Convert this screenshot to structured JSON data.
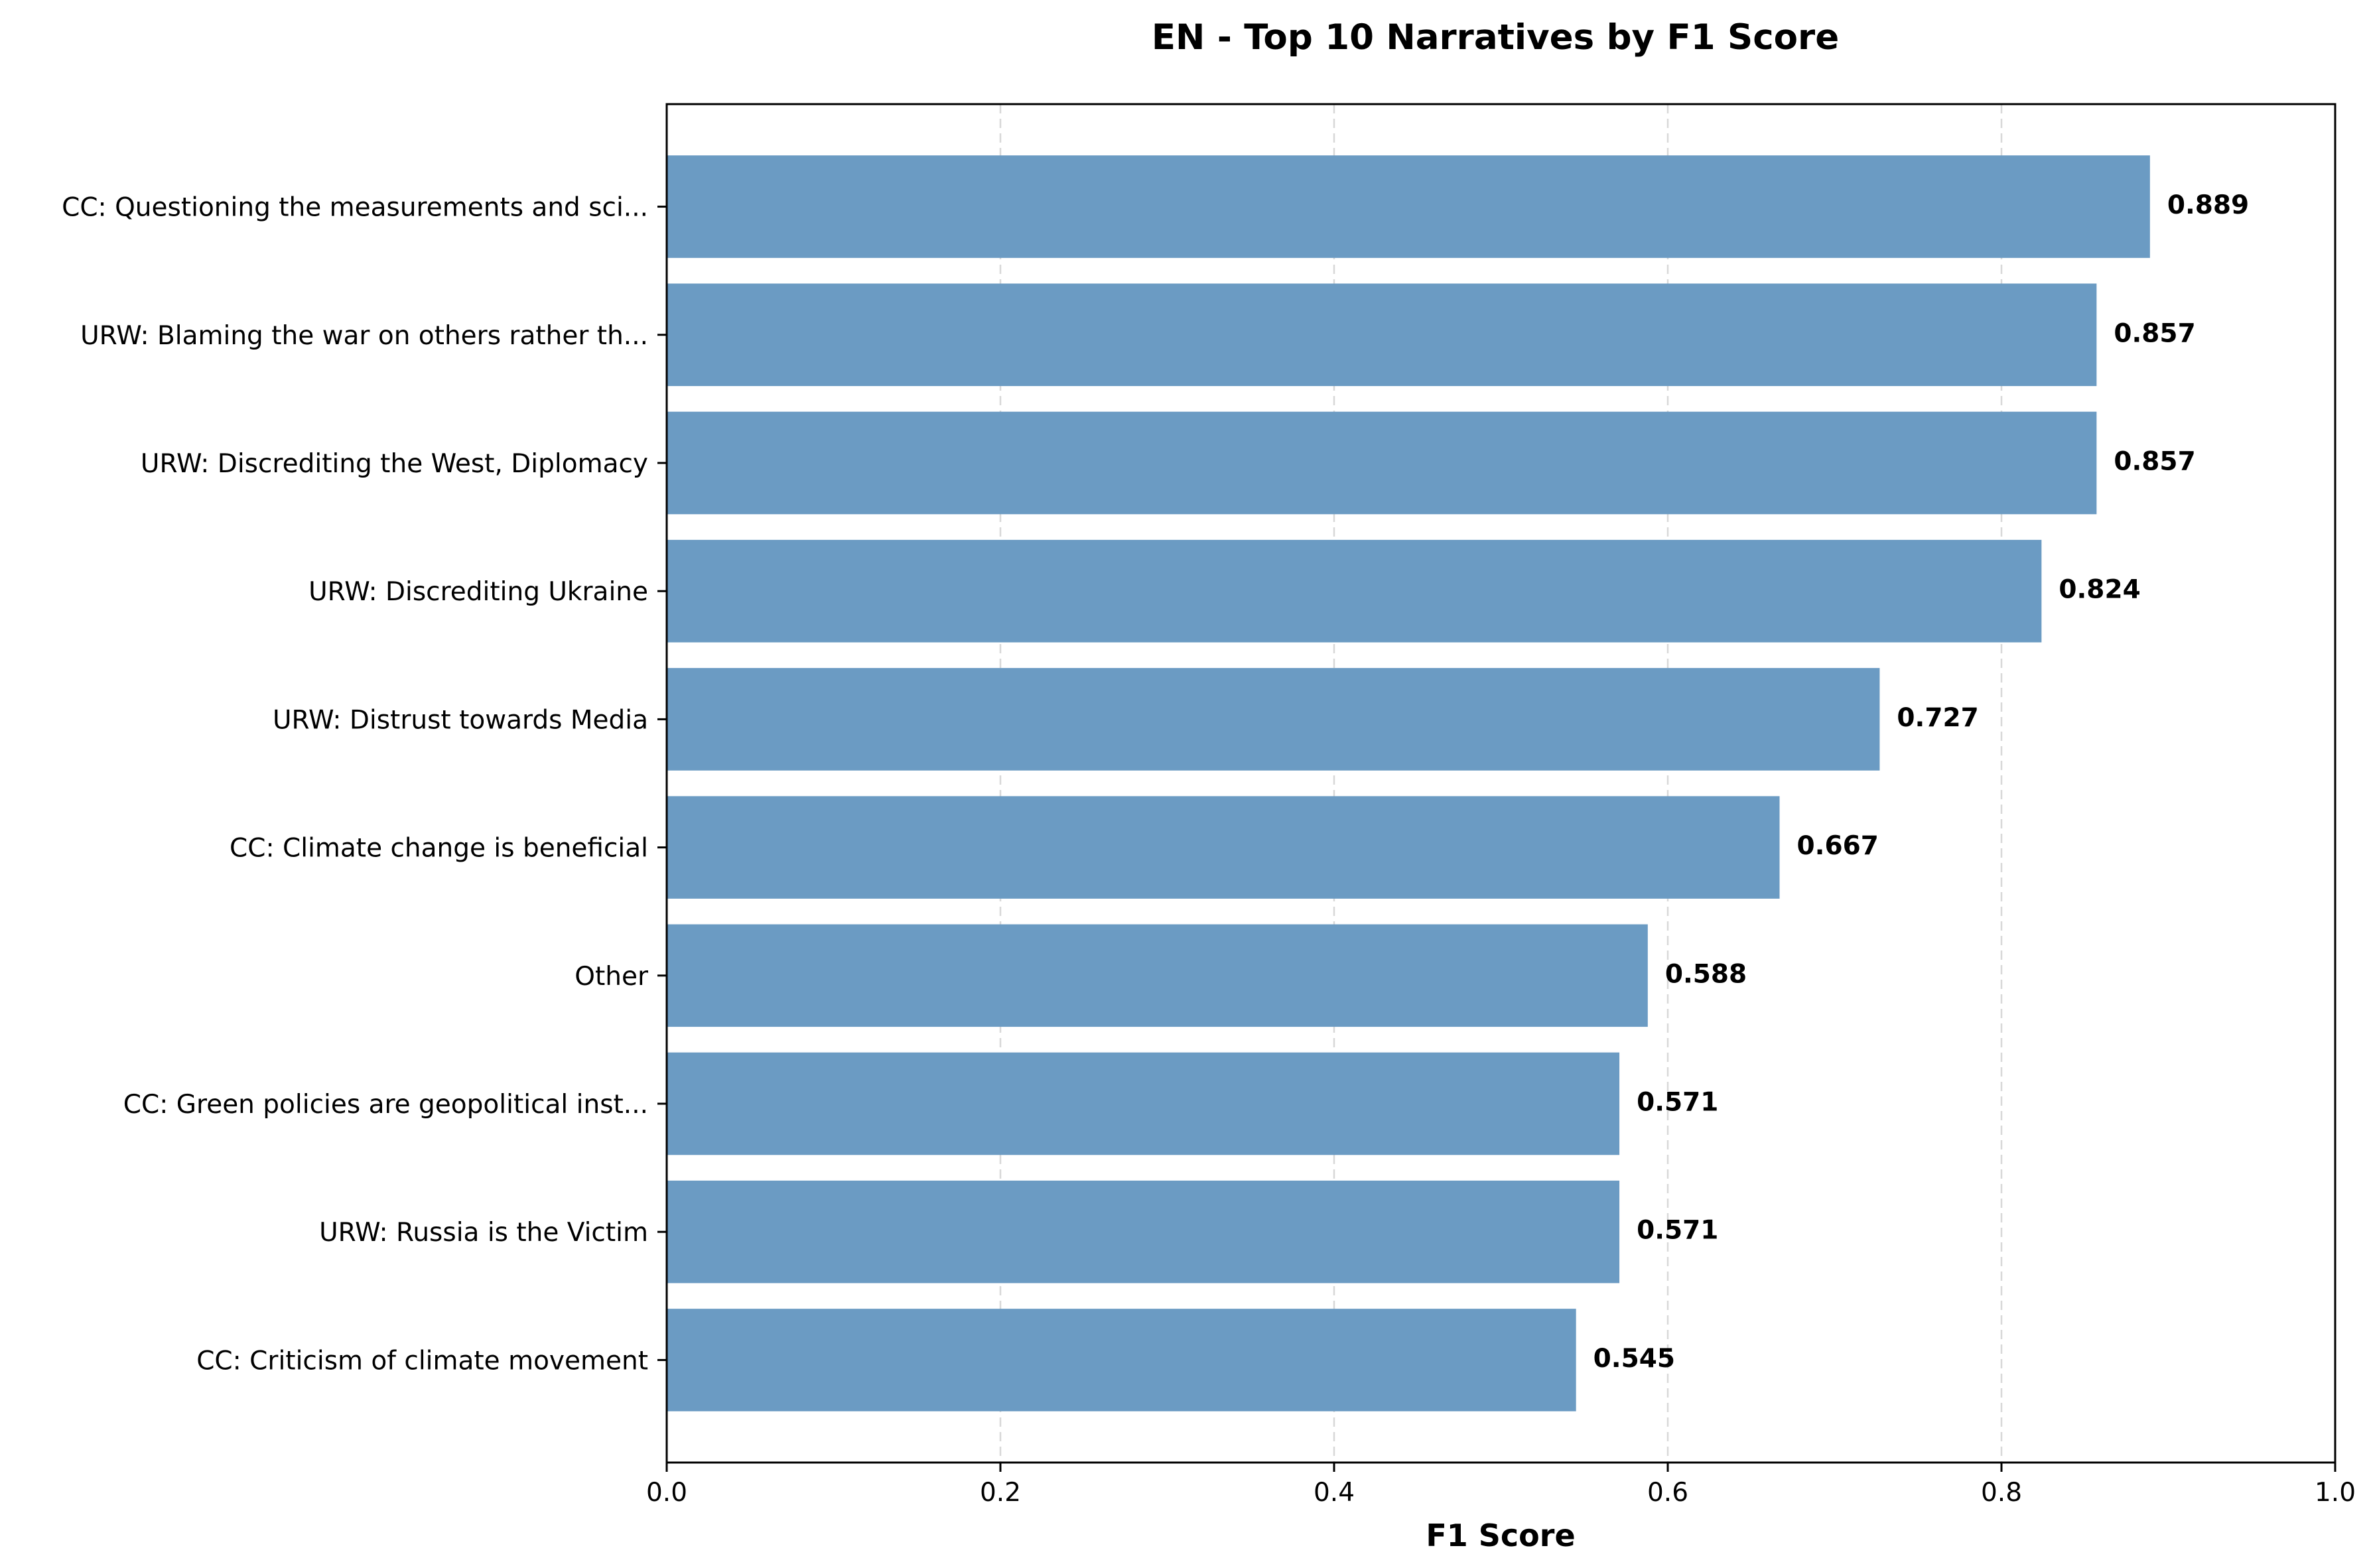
{
  "chart_data": {
    "type": "bar",
    "orientation": "horizontal",
    "title": "EN - Top 10 Narratives by F1 Score",
    "xlabel": "F1 Score",
    "ylabel": "",
    "xlim": [
      0,
      1
    ],
    "xticks": [
      0.0,
      0.2,
      0.4,
      0.6,
      0.8,
      1.0
    ],
    "xtick_labels": [
      "0.0",
      "0.2",
      "0.4",
      "0.6",
      "0.8",
      "1.0"
    ],
    "grid": "x-dashed",
    "bar_color": "#6b9bc3",
    "categories": [
      "CC: Questioning the measurements and sci...",
      "URW: Blaming the war on others rather th...",
      "URW: Discrediting the West, Diplomacy",
      "URW: Discrediting Ukraine",
      "URW: Distrust towards Media",
      "CC: Climate change is beneficial",
      "Other",
      "CC: Green policies are geopolitical inst...",
      "URW: Russia is the Victim",
      "CC: Criticism of climate movement"
    ],
    "values": [
      0.889,
      0.857,
      0.857,
      0.824,
      0.727,
      0.667,
      0.588,
      0.571,
      0.571,
      0.545
    ],
    "value_labels": [
      "0.889",
      "0.857",
      "0.857",
      "0.824",
      "0.727",
      "0.667",
      "0.588",
      "0.571",
      "0.571",
      "0.545"
    ]
  }
}
